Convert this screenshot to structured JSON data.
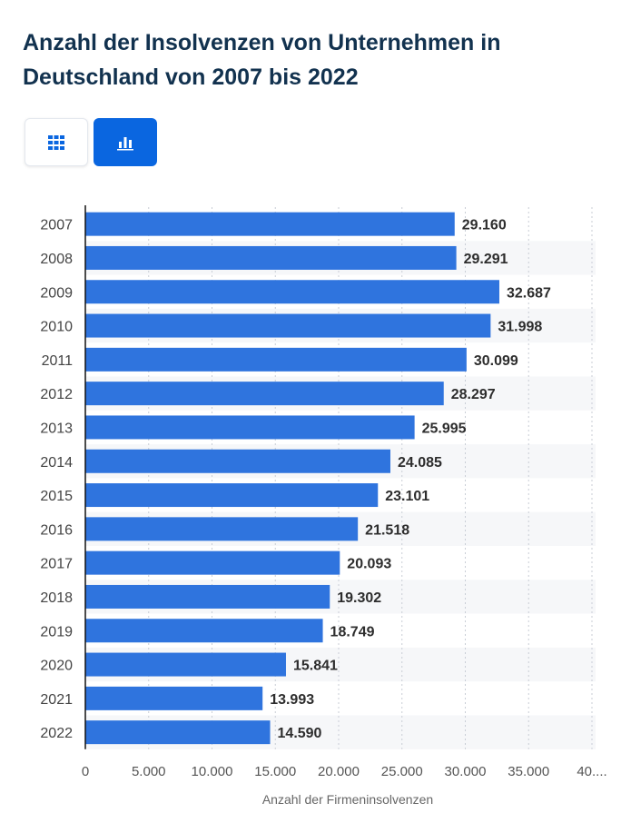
{
  "header": {
    "title": "Anzahl der Insolvenzen von Unternehmen in Deutschland von 2007 bis 2022"
  },
  "toolbar": {
    "table_icon": "table-grid-icon",
    "chart_icon": "bar-chart-icon",
    "active": "chart"
  },
  "colors": {
    "bar": "#2f74de",
    "accent": "#0a66e0",
    "title": "#12324f",
    "axis_text": "#444444",
    "value_text": "#2d2d2d"
  },
  "chart_data": {
    "type": "bar",
    "orientation": "horizontal",
    "categories": [
      "2007",
      "2008",
      "2009",
      "2010",
      "2011",
      "2012",
      "2013",
      "2014",
      "2015",
      "2016",
      "2017",
      "2018",
      "2019",
      "2020",
      "2021",
      "2022"
    ],
    "values": [
      29160,
      29291,
      32687,
      31998,
      30099,
      28297,
      25995,
      24085,
      23101,
      21518,
      20093,
      19302,
      18749,
      15841,
      13993,
      14590
    ],
    "value_labels": [
      "29.160",
      "29.291",
      "32.687",
      "31.998",
      "30.099",
      "28.297",
      "25.995",
      "24.085",
      "23.101",
      "21.518",
      "20.093",
      "19.302",
      "18.749",
      "15.841",
      "13.993",
      "14.590"
    ],
    "x_ticks": [
      0,
      5000,
      10000,
      15000,
      20000,
      25000,
      30000,
      35000,
      40000
    ],
    "x_tick_labels": [
      "0",
      "5.000",
      "10.000",
      "15.000",
      "20.000",
      "25.000",
      "30.000",
      "35.000",
      "40...."
    ],
    "xlabel": "Anzahl der Firmeninsolvenzen",
    "xlim": [
      0,
      40000
    ],
    "grid": true,
    "title": "Anzahl der Insolvenzen von Unternehmen in Deutschland von 2007 bis 2022"
  }
}
